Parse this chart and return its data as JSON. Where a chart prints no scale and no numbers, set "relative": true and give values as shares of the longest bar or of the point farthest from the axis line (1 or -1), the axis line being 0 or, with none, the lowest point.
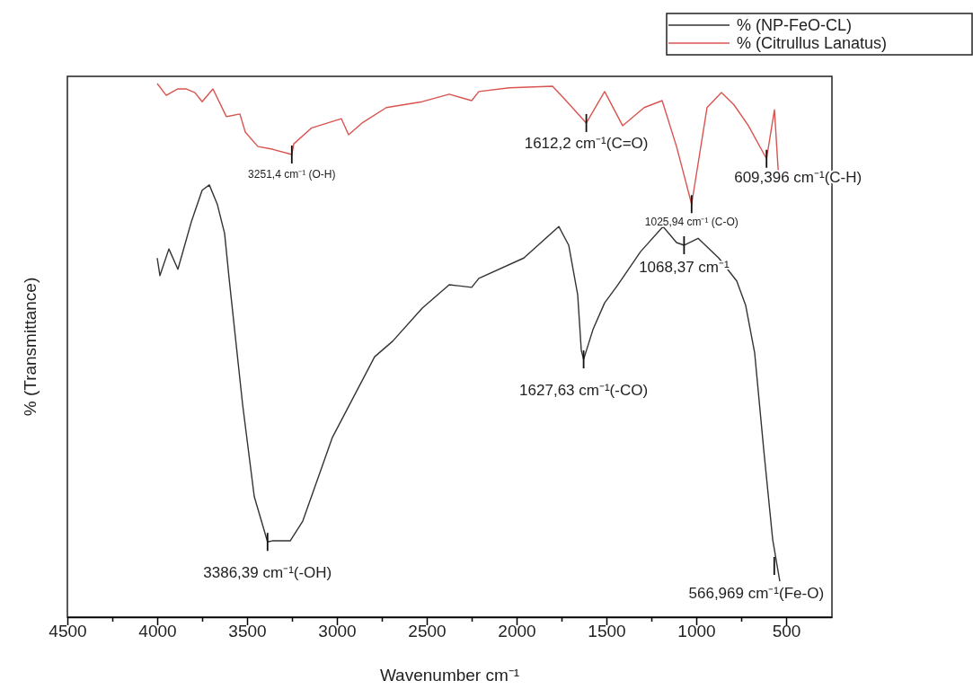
{
  "chart_data": {
    "type": "line",
    "relative": true,
    "xlabel": "Wavenumber cm⁻¹",
    "ylabel": "% (Transmittance)",
    "xlim": [
      4500,
      245
    ],
    "xticks": [
      4500,
      {
        "value": 4250,
        "label": null
      },
      4000,
      {
        "value": 3750,
        "label": null
      },
      3500,
      {
        "value": 3250,
        "label": null
      },
      3000,
      {
        "value": 2750,
        "label": null
      },
      2500,
      {
        "value": 2250,
        "label": null
      },
      2000,
      {
        "value": 1750,
        "label": null
      },
      1500,
      {
        "value": 1250,
        "label": null
      },
      1000,
      {
        "value": 750,
        "label": null
      },
      500
    ],
    "legend": "top right",
    "grid": false,
    "series": [
      {
        "name": "% (NP-FeO-CL)",
        "color": "#333333",
        "x": [
          4000,
          3985,
          3935,
          3885,
          3810,
          3750,
          3710,
          3665,
          3625,
          3600,
          3525,
          3460,
          3386,
          3360,
          3260,
          3190,
          3025,
          2790,
          2690,
          2525,
          2375,
          2250,
          2210,
          1960,
          1765,
          1710,
          1660,
          1640,
          1627,
          1575,
          1510,
          1440,
          1310,
          1185,
          1110,
          1068,
          990,
          875,
          775,
          725,
          675,
          625,
          575,
          550,
          535
        ],
        "values": [
          0.673,
          0.64,
          0.69,
          0.652,
          0.741,
          0.8,
          0.81,
          0.773,
          0.719,
          0.635,
          0.399,
          0.226,
          0.141,
          0.143,
          0.143,
          0.18,
          0.337,
          0.488,
          0.517,
          0.579,
          0.623,
          0.618,
          0.635,
          0.673,
          0.732,
          0.697,
          0.604,
          0.5,
          0.483,
          0.539,
          0.589,
          0.621,
          0.685,
          0.732,
          0.702,
          0.697,
          0.71,
          0.673,
          0.63,
          0.584,
          0.495,
          0.315,
          0.146,
          0.096,
          0.067
        ]
      },
      {
        "name": "% (Citrullus Lanatus)",
        "color": "#d9534f",
        "x": [
          4000,
          3950,
          3885,
          3840,
          3790,
          3750,
          3690,
          3615,
          3540,
          3510,
          3440,
          3360,
          3251,
          3240,
          3140,
          2975,
          2935,
          2860,
          2725,
          2525,
          2375,
          2250,
          2210,
          2040,
          1800,
          1725,
          1612,
          1510,
          1410,
          1290,
          1190,
          1110,
          1026,
          940,
          860,
          790,
          710,
          609,
          565,
          540
        ],
        "values": [
          1,
          0.978,
          0.99,
          0.99,
          0.983,
          0.966,
          0.99,
          0.938,
          0.943,
          0.909,
          0.882,
          0.877,
          0.867,
          0.887,
          0.917,
          0.934,
          0.904,
          0.926,
          0.955,
          0.966,
          0.98,
          0.968,
          0.985,
          0.992,
          0.995,
          0.968,
          0.926,
          0.985,
          0.921,
          0.955,
          0.968,
          0.882,
          0.774,
          0.955,
          0.983,
          0.96,
          0.921,
          0.859,
          0.951,
          0.815
        ]
      }
    ],
    "annotations": [
      {
        "text": "3251,4 cm⁻¹ (O-H)",
        "x": 3251,
        "y": 0.867
      },
      {
        "text": "1612,2 cm⁻¹(C=O)",
        "x": 1612,
        "y": 0.926
      },
      {
        "text": "1025,94 cm⁻¹ (C-O)",
        "x": 1026,
        "y": 0.774
      },
      {
        "text": "609,396 cm⁻¹(C-H)",
        "x": 609,
        "y": 0.859
      },
      {
        "text": "1068,37 cm⁻¹",
        "x": 1068,
        "y": 0.697
      },
      {
        "text": "1627,63 cm⁻¹(-CO)",
        "x": 1627,
        "y": 0.483
      },
      {
        "text": "3386,39 cm⁻¹(-OH)",
        "x": 3386,
        "y": 0.141
      },
      {
        "text": "566,969 cm⁻¹(Fe-O)",
        "x": 566,
        "y": 0.096
      }
    ]
  }
}
